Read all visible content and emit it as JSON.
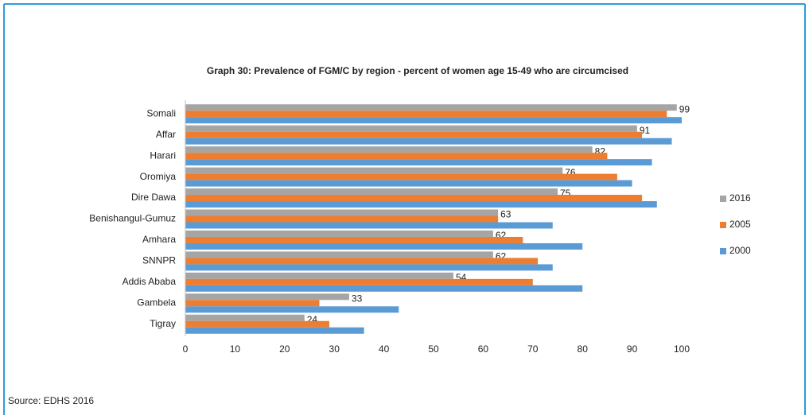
{
  "chart_data": {
    "type": "hbar",
    "title": "Graph 30: Prevalence of FGM/C by region - percent of women age 15-49 who are circumcised",
    "categories": [
      "Somali",
      "Affar",
      "Harari",
      "Oromiya",
      "Dire Dawa",
      "Benishangul-Gumuz",
      "Amhara",
      "SNNPR",
      "Addis Ababa",
      "Gambela",
      "Tigray"
    ],
    "series": [
      {
        "name": "2016",
        "color": "#a5a5a5",
        "values": [
          99,
          91,
          82,
          76,
          75,
          63,
          62,
          62,
          54,
          33,
          24
        ]
      },
      {
        "name": "2005",
        "color": "#ed7d31",
        "values": [
          97,
          92,
          85,
          87,
          92,
          63,
          68,
          71,
          70,
          27,
          29
        ]
      },
      {
        "name": "2000",
        "color": "#5b9bd5",
        "values": [
          100,
          98,
          94,
          90,
          95,
          74,
          80,
          74,
          80,
          43,
          36
        ]
      }
    ],
    "xlim": [
      0,
      100
    ],
    "xticks": [
      0,
      10,
      20,
      30,
      40,
      50,
      60,
      70,
      80,
      90,
      100
    ],
    "grid": false,
    "legend": "right",
    "source": "Source: EDHS 2016"
  }
}
